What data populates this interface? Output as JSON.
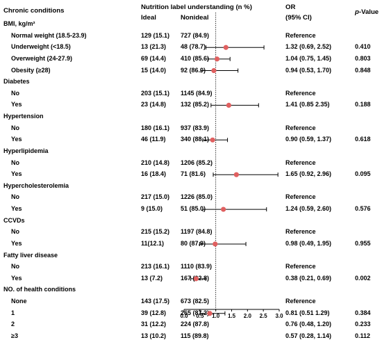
{
  "header": {
    "conditions": "Chronic conditions",
    "nutrition": "Nutrition label understanding (n %)",
    "ideal": "Ideal",
    "nonideal": "Nonideal",
    "or": "OR",
    "ci": "(95% CI)",
    "p_prefix": "p",
    "p_suffix": "-Value"
  },
  "axis": {
    "ticks": [
      "0.0",
      "0.5",
      "1.0",
      "1.5",
      "2.0",
      "2.5",
      "3.0"
    ],
    "reference_line": 1.0
  },
  "colors": {
    "point": "#e06060",
    "line": "#000000"
  },
  "chart_data": {
    "type": "forest",
    "xlim": [
      0,
      3
    ],
    "xticks": [
      0.0,
      0.5,
      1.0,
      1.5,
      2.0,
      2.5,
      3.0
    ],
    "groups": [
      {
        "name": "BMI, kg/m²",
        "rows": [
          {
            "label": "Normal weight (18.5-23.9)",
            "ideal": "129 (15.1)",
            "nonideal": "727 (84.9)",
            "or_text": "Reference",
            "p": ""
          },
          {
            "label": "Underweight (<18.5)",
            "ideal": "13 (21.3)",
            "nonideal": "48 (78.7)",
            "or_text": "1.32 (0.69, 2.52)",
            "p": "0.410",
            "or": 1.32,
            "lo": 0.69,
            "hi": 2.52
          },
          {
            "label": "Overweight (24-27.9)",
            "ideal": "69 (14.4)",
            "nonideal": "410 (85.6)",
            "or_text": "1.04 (0.75, 1.45)",
            "p": "0.803",
            "or": 1.04,
            "lo": 0.75,
            "hi": 1.45
          },
          {
            "label": "Obesity (≥28)",
            "ideal": "15 (14.0)",
            "nonideal": "92 (86.0)",
            "or_text": "0.94 (0.53, 1.70)",
            "p": "0.848",
            "or": 0.94,
            "lo": 0.53,
            "hi": 1.7
          }
        ]
      },
      {
        "name": "Diabetes",
        "rows": [
          {
            "label": "No",
            "ideal": "203 (15.1)",
            "nonideal": "1145 (84.9)",
            "or_text": "Reference",
            "p": ""
          },
          {
            "label": "Yes",
            "ideal": "23 (14.8)",
            "nonideal": "132 (85.2)",
            "or_text": "1.41 (0.85 2.35)",
            "p": "0.188",
            "or": 1.41,
            "lo": 0.85,
            "hi": 2.35
          }
        ]
      },
      {
        "name": "Hypertension",
        "rows": [
          {
            "label": "No",
            "ideal": "180 (16.1)",
            "nonideal": "937 (83.9)",
            "or_text": "Reference",
            "p": ""
          },
          {
            "label": "Yes",
            "ideal": "46 (11.9)",
            "nonideal": "340 (88.1)",
            "or_text": "0.90 (0.59, 1.37)",
            "p": "0.618",
            "or": 0.9,
            "lo": 0.59,
            "hi": 1.37
          }
        ]
      },
      {
        "name": "Hyperlipidemia",
        "rows": [
          {
            "label": "No",
            "ideal": "210 (14.8)",
            "nonideal": "1206 (85.2)",
            "or_text": "Reference",
            "p": ""
          },
          {
            "label": "Yes",
            "ideal": "16 (18.4)",
            "nonideal": "71 (81.6)",
            "or_text": "1.65 (0.92, 2.96)",
            "p": "0.095",
            "or": 1.65,
            "lo": 0.92,
            "hi": 2.96
          }
        ]
      },
      {
        "name": "Hypercholesterolemia",
        "rows": [
          {
            "label": "No",
            "ideal": "217 (15.0)",
            "nonideal": "1226 (85.0)",
            "or_text": "Reference",
            "p": ""
          },
          {
            "label": "Yes",
            "ideal": "9 (15.0)",
            "nonideal": "51 (85.0)",
            "or_text": "1.24 (0.59, 2.60)",
            "p": "0.576",
            "or": 1.24,
            "lo": 0.59,
            "hi": 2.6
          }
        ]
      },
      {
        "name": "CCVDs",
        "rows": [
          {
            "label": "No",
            "ideal": "215 (15.2)",
            "nonideal": "1197 (84.8)",
            "or_text": "Reference",
            "p": ""
          },
          {
            "label": "Yes",
            "ideal": "11(12.1)",
            "nonideal": "80 (87.9)",
            "or_text": "0.98 (0.49, 1.95)",
            "p": "0.955",
            "or": 0.98,
            "lo": 0.49,
            "hi": 1.95
          }
        ]
      },
      {
        "name": "Fatty liver disease",
        "rows": [
          {
            "label": "No",
            "ideal": "213 (16.1)",
            "nonideal": "1110 (83.9)",
            "or_text": "Reference",
            "p": ""
          },
          {
            "label": "Yes",
            "ideal": "13 (7.2)",
            "nonideal": "167 (92.8)",
            "or_text": "0.38 (0.21, 0.69)",
            "p": "0.002",
            "or": 0.38,
            "lo": 0.21,
            "hi": 0.69
          }
        ]
      },
      {
        "name": "NO. of health conditions",
        "rows": [
          {
            "label": "None",
            "ideal": "143 (17.5)",
            "nonideal": "673 (82.5)",
            "or_text": "Reference",
            "p": ""
          },
          {
            "label": "1",
            "ideal": "39 (12.8)",
            "nonideal": "265 (87.2)",
            "or_text": "0.81 (0.51 1.29)",
            "p": "0.384",
            "or": 0.81,
            "lo": 0.51,
            "hi": 1.29
          },
          {
            "label": "2",
            "ideal": "31 (12.2)",
            "nonideal": "224 (87.8)",
            "or_text": "0.76 (0.48, 1.20)",
            "p": "0.233",
            "or": 0.76,
            "lo": 0.48,
            "hi": 1.2
          },
          {
            "label": "≥3",
            "ideal": "13 (10.2)",
            "nonideal": "115 (89.8)",
            "or_text": "0.57 (0.28, 1.14)",
            "p": "0.112",
            "or": 0.57,
            "lo": 0.28,
            "hi": 1.14
          }
        ]
      }
    ]
  }
}
